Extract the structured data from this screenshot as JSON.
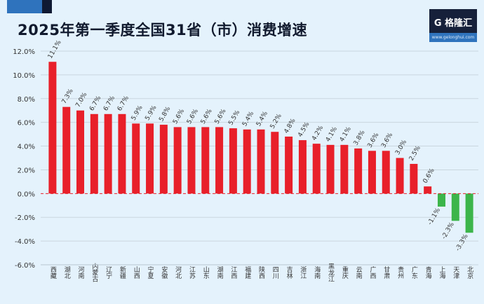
{
  "header": {
    "title": "2025年第一季度全国31省（市）消费增速"
  },
  "logo": {
    "name": "G 格隆汇",
    "url": "www.gelonghui.com"
  },
  "colors": {
    "positive": "#e8202a",
    "negative": "#3cb54a",
    "grid": "#c9d6df",
    "zero_line": "#e8202a"
  },
  "chart_data": {
    "type": "bar",
    "title": "2025年第一季度全国31省（市）消费增速",
    "xlabel": "",
    "ylabel": "",
    "ylim": [
      -6,
      12
    ],
    "yticks": [
      "-6.0%",
      "-4.0%",
      "-2.0%",
      "0.0%",
      "2.0%",
      "4.0%",
      "6.0%",
      "8.0%",
      "10.0%",
      "12.0%"
    ],
    "ytick_values": [
      -6,
      -4,
      -2,
      0,
      2,
      4,
      6,
      8,
      10,
      12
    ],
    "grid": true,
    "categories": [
      "西藏",
      "湖北",
      "河南",
      "内蒙古",
      "辽宁",
      "新疆",
      "山西",
      "宁夏",
      "安徽",
      "河北",
      "江苏",
      "山东",
      "湖南",
      "江西",
      "福建",
      "陕西",
      "四川",
      "吉林",
      "浙江",
      "海南",
      "黑龙江",
      "重庆",
      "云南",
      "广西",
      "甘肃",
      "贵州",
      "广东",
      "青海",
      "上海",
      "天津",
      "北京"
    ],
    "values": [
      11.1,
      7.3,
      7.0,
      6.7,
      6.7,
      6.7,
      5.9,
      5.9,
      5.8,
      5.6,
      5.6,
      5.6,
      5.6,
      5.5,
      5.4,
      5.4,
      5.2,
      4.8,
      4.5,
      4.2,
      4.1,
      4.1,
      3.8,
      3.6,
      3.6,
      3.0,
      2.5,
      0.6,
      -1.1,
      -2.3,
      -3.3
    ],
    "data_labels": [
      "11.1%",
      "7.3%",
      "7.0%",
      "6.7%",
      "6.7%",
      "6.7%",
      "5.9%",
      "5.9%",
      "5.8%",
      "5.6%",
      "5.6%",
      "5.6%",
      "5.6%",
      "5.5%",
      "5.4%",
      "5.4%",
      "5.2%",
      "4.8%",
      "4.5%",
      "4.2%",
      "4.1%",
      "4.1%",
      "3.8%",
      "3.6%",
      "3.6%",
      "3.0%",
      "2.5%",
      "0.6%",
      "-1.1%",
      "-2.3%",
      "-3.3%"
    ]
  }
}
